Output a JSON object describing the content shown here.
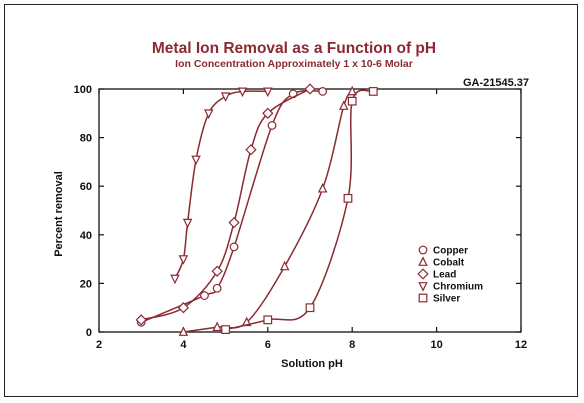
{
  "figure_id": "GA-21545.37",
  "colors": {
    "series": "#8a2a32",
    "title": "#8a2a32",
    "axis": "#111111"
  },
  "chart_data": {
    "type": "scatter",
    "title": "Metal Ion Removal as a Function of pH",
    "subtitle": "Ion Concentration Approximately 1 x 10-6 Molar",
    "xlabel": "Solution pH",
    "ylabel": "Percent removal",
    "xlim": [
      2,
      12
    ],
    "ylim": [
      0,
      100
    ],
    "xticks": [
      "2",
      "4",
      "6",
      "8",
      "10",
      "12"
    ],
    "yticks": [
      "0",
      "20",
      "40",
      "60",
      "80",
      "100"
    ],
    "grid": false,
    "legend_position": "right",
    "series": [
      {
        "name": "Copper",
        "marker": "circle",
        "points": [
          [
            3.0,
            4
          ],
          [
            4.5,
            15
          ],
          [
            4.8,
            18
          ],
          [
            5.2,
            35
          ],
          [
            6.1,
            85
          ],
          [
            6.6,
            98
          ],
          [
            7.3,
            99
          ]
        ]
      },
      {
        "name": "Cobalt",
        "marker": "triangle-up",
        "points": [
          [
            4.0,
            0
          ],
          [
            4.8,
            2
          ],
          [
            5.5,
            4
          ],
          [
            6.4,
            27
          ],
          [
            7.3,
            59
          ],
          [
            7.8,
            93
          ],
          [
            8.0,
            99
          ]
        ]
      },
      {
        "name": "Lead",
        "marker": "diamond",
        "points": [
          [
            3.0,
            5
          ],
          [
            4.0,
            10
          ],
          [
            4.8,
            25
          ],
          [
            5.2,
            45
          ],
          [
            5.6,
            75
          ],
          [
            6.0,
            90
          ],
          [
            7.0,
            100
          ]
        ]
      },
      {
        "name": "Chromium",
        "marker": "triangle-down",
        "points": [
          [
            3.8,
            22
          ],
          [
            4.0,
            30
          ],
          [
            4.1,
            45
          ],
          [
            4.3,
            71
          ],
          [
            4.6,
            90
          ],
          [
            5.0,
            97
          ],
          [
            5.4,
            99
          ],
          [
            6.0,
            99
          ]
        ]
      },
      {
        "name": "Silver",
        "marker": "square",
        "points": [
          [
            5.0,
            1
          ],
          [
            6.0,
            5
          ],
          [
            7.0,
            10
          ],
          [
            7.9,
            55
          ],
          [
            8.0,
            95
          ],
          [
            8.5,
            99
          ]
        ]
      }
    ]
  }
}
